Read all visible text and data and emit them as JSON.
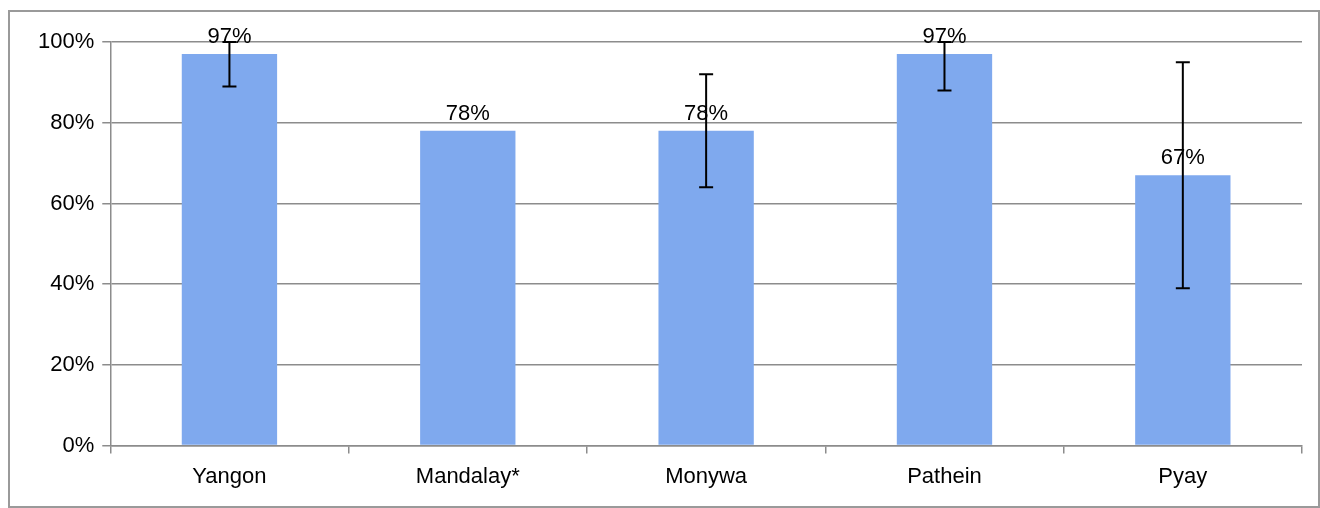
{
  "chart_data": {
    "type": "bar",
    "categories": [
      "Yangon",
      "Mandalay*",
      "Monywa",
      "Pathein",
      "Pyay"
    ],
    "values": [
      97,
      78,
      78,
      97,
      67
    ],
    "value_labels": [
      "97%",
      "78%",
      "78%",
      "97%",
      "67%"
    ],
    "errors": [
      [
        89,
        100
      ],
      null,
      [
        64,
        92
      ],
      [
        88,
        100
      ],
      [
        39,
        95
      ]
    ],
    "color": "#7fa9ee",
    "ylim": [
      0,
      100
    ],
    "yticks": [
      {
        "value": 0,
        "label": "0%"
      },
      {
        "value": 20,
        "label": "20%"
      },
      {
        "value": 40,
        "label": "40%"
      },
      {
        "value": 60,
        "label": "60%"
      },
      {
        "value": 80,
        "label": "80%"
      },
      {
        "value": 100,
        "label": "100%"
      }
    ],
    "grid": "y"
  }
}
